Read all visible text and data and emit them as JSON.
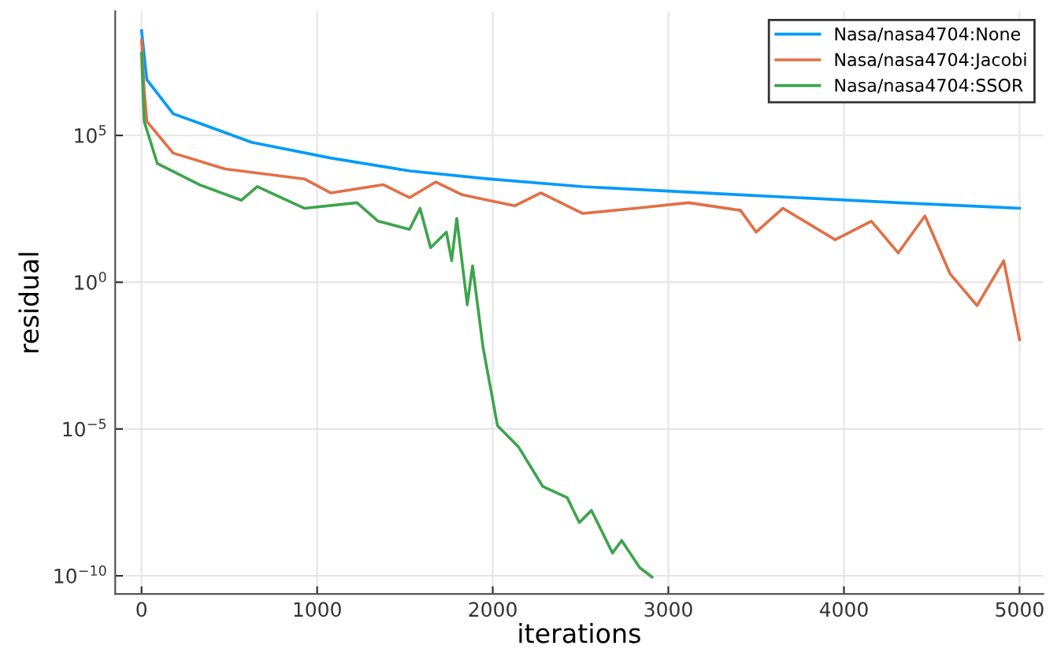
{
  "chart_data": {
    "type": "line",
    "xlabel": "iterations",
    "ylabel": "residual",
    "log": "y",
    "grid": true,
    "legend": "top right",
    "xlim": [
      -150,
      5135
    ],
    "xticks": [
      0,
      1000,
      2000,
      3000,
      4000,
      5000
    ],
    "ylim": [
      2.4e-11,
      1700000000.0
    ],
    "yticks": [
      {
        "value": 100000,
        "label": "10$^{5}$"
      },
      {
        "value": 1,
        "label": "10$^{0}$"
      },
      {
        "value": 1e-05,
        "label": "10$^{−5}$"
      },
      {
        "value": 1e-10,
        "label": "10$^{−10}$"
      }
    ],
    "series": [
      {
        "name": "Nasa/nasa4704:None",
        "color": "#009af9",
        "x": [
          0,
          30,
          180,
          628,
          1077,
          1526,
          1975,
          2513,
          3411,
          4309,
          5000
        ],
        "values": [
          370000000.0,
          7900000.0,
          550000.0,
          58000.0,
          17000.0,
          6200.0,
          3300.0,
          1800.0,
          950.0,
          510.0,
          330.0
        ]
      },
      {
        "name": "Nasa/nasa4704:Jacobi",
        "color": "#e26f46",
        "x": [
          0,
          15,
          30,
          180,
          476,
          927,
          1077,
          1376,
          1526,
          1676,
          1826,
          2125,
          2274,
          2513,
          2811,
          3115,
          3411,
          3500,
          3653,
          3950,
          4156,
          4309,
          4461,
          4605,
          4758,
          4910,
          5000
        ],
        "values": [
          180000000.0,
          3500000.0,
          300000.0,
          25000.0,
          7200.0,
          3300.0,
          1100.0,
          2100.0,
          760.0,
          2600.0,
          950.0,
          400.0,
          1100.0,
          220.0,
          330.0,
          510.0,
          280.0,
          51,
          330.0,
          28,
          120.0,
          10,
          180.0,
          1.9,
          0.16,
          5.4,
          0.011
        ]
      },
      {
        "name": "Nasa/nasa4704:SSOR",
        "color": "#3da44d",
        "x": [
          0,
          15,
          90,
          329,
          569,
          659,
          927,
          1227,
          1347,
          1526,
          1586,
          1646,
          1736,
          1766,
          1795,
          1855,
          1885,
          1945,
          2027,
          2146,
          2285,
          2424,
          2493,
          2562,
          2682,
          2734,
          2837,
          2907
        ],
        "values": [
          63000000.0,
          300000.0,
          11000.0,
          2100.0,
          620.0,
          1800.0,
          330.0,
          510.0,
          120.0,
          63,
          330.0,
          15,
          51,
          5.4,
          150.0,
          0.17,
          3.6,
          0.0059,
          1.3e-05,
          2.5e-06,
          1.1e-07,
          4.6e-08,
          6.5e-09,
          1.7e-08,
          6e-10,
          1.6e-09,
          1.9e-10,
          9.1e-11
        ]
      }
    ]
  }
}
